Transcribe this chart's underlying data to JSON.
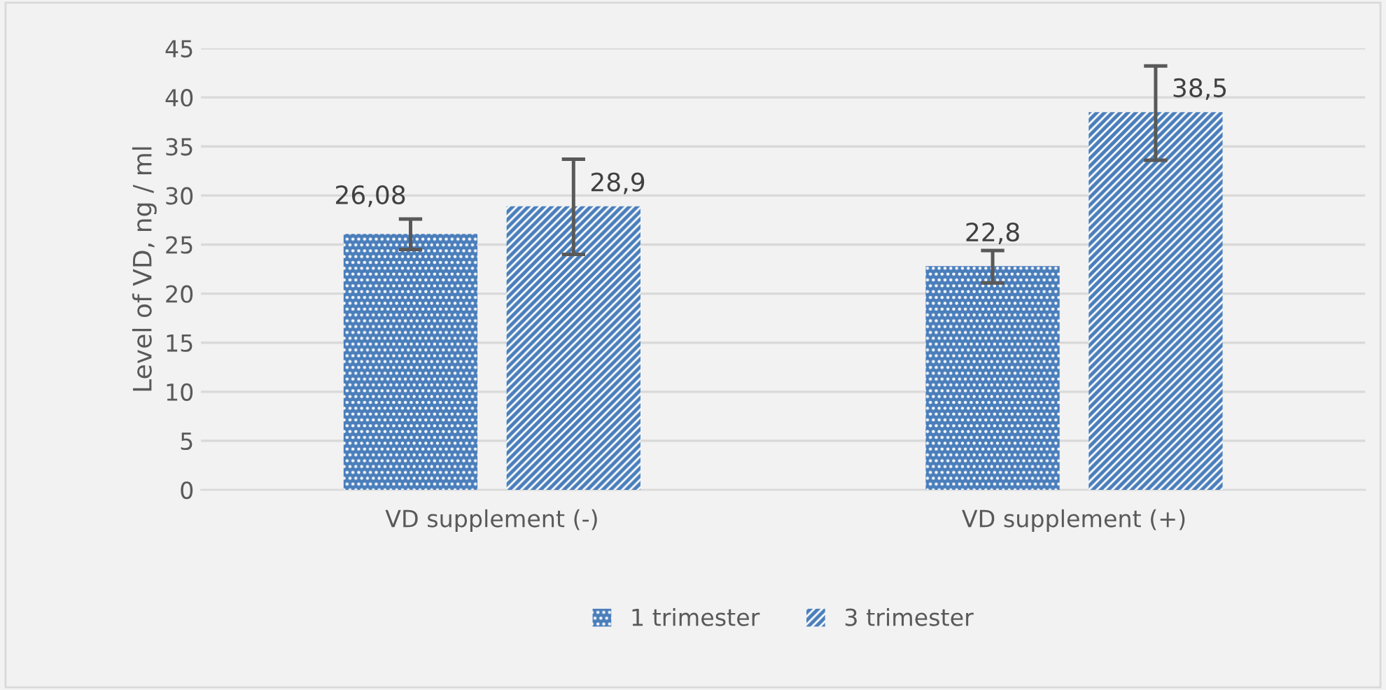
{
  "chart_data": {
    "type": "bar",
    "ylabel": "Level of VD, ng / ml",
    "categories": [
      "VD supplement (-)",
      "VD supplement (+)"
    ],
    "series": [
      {
        "name": "1 trimester",
        "color": "#4a7ebb",
        "values": [
          26.08,
          22.8
        ],
        "errors": [
          [
            24.5,
            27.6
          ],
          [
            21.1,
            24.4
          ]
        ],
        "value_labels": [
          "26,08",
          "22,8"
        ]
      },
      {
        "name": "3 trimester",
        "color": "#4a7ebb",
        "values": [
          28.9,
          38.5
        ],
        "errors": [
          [
            24.0,
            33.7
          ],
          [
            33.6,
            43.2
          ]
        ],
        "value_labels": [
          "28,9",
          "38,5"
        ]
      }
    ],
    "ylim": [
      0,
      45
    ],
    "yticks": [
      0,
      5,
      10,
      15,
      20,
      25,
      30,
      35,
      40,
      45
    ],
    "grid": "y",
    "legend": "bottom"
  }
}
